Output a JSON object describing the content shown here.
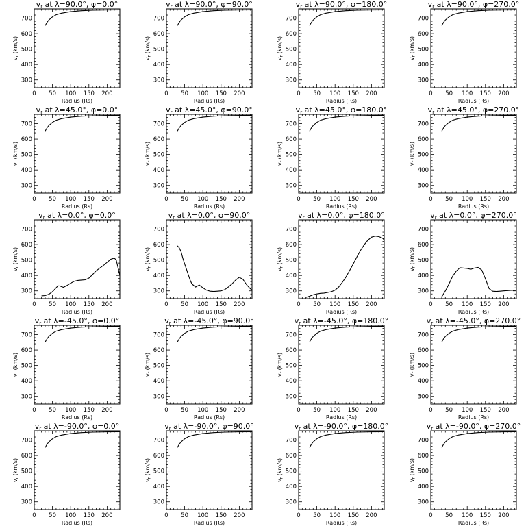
{
  "figure": {
    "xlabel": "Radius (Rs)",
    "ylabel": "vr (km/s)"
  },
  "chart_data": [
    {
      "type": "line",
      "title": "vr at λ=90.0°, φ=0.0°",
      "xlabel": "Radius (Rs)",
      "ylabel": "vr (km/s)",
      "xlim": [
        0,
        235
      ],
      "ylim": [
        250,
        760
      ],
      "xticks": [
        0,
        50,
        100,
        150,
        200
      ],
      "yticks": [
        300,
        400,
        500,
        600,
        700
      ],
      "x": [
        30,
        35,
        40,
        50,
        60,
        75,
        100,
        130,
        160,
        200,
        235
      ],
      "y": [
        652,
        672,
        688,
        708,
        722,
        732,
        742,
        748,
        751,
        753,
        754
      ]
    },
    {
      "type": "line",
      "title": "vr at λ=90.0°, φ=90.0°",
      "xlabel": "Radius (Rs)",
      "ylabel": "vr (km/s)",
      "xlim": [
        0,
        235
      ],
      "ylim": [
        250,
        760
      ],
      "xticks": [
        0,
        50,
        100,
        150,
        200
      ],
      "yticks": [
        300,
        400,
        500,
        600,
        700
      ],
      "x": [
        30,
        35,
        40,
        50,
        60,
        75,
        100,
        130,
        160,
        200,
        235
      ],
      "y": [
        652,
        672,
        688,
        708,
        722,
        732,
        742,
        748,
        751,
        753,
        754
      ]
    },
    {
      "type": "line",
      "title": "vr at λ=90.0°, φ=180.0°",
      "xlabel": "Radius (Rs)",
      "ylabel": "vr (km/s)",
      "xlim": [
        0,
        235
      ],
      "ylim": [
        250,
        760
      ],
      "xticks": [
        0,
        50,
        100,
        150,
        200
      ],
      "yticks": [
        300,
        400,
        500,
        600,
        700
      ],
      "x": [
        30,
        35,
        40,
        50,
        60,
        75,
        100,
        130,
        160,
        200,
        235
      ],
      "y": [
        652,
        672,
        688,
        708,
        722,
        732,
        742,
        748,
        751,
        753,
        754
      ]
    },
    {
      "type": "line",
      "title": "vr at λ=90.0°, φ=270.0°",
      "xlabel": "Radius (Rs)",
      "ylabel": "vr (km/s)",
      "xlim": [
        0,
        235
      ],
      "ylim": [
        250,
        760
      ],
      "xticks": [
        0,
        50,
        100,
        150,
        200
      ],
      "yticks": [
        300,
        400,
        500,
        600,
        700
      ],
      "x": [
        30,
        35,
        40,
        50,
        60,
        75,
        100,
        130,
        160,
        200,
        235
      ],
      "y": [
        652,
        672,
        688,
        708,
        722,
        732,
        742,
        748,
        751,
        753,
        754
      ]
    },
    {
      "type": "line",
      "title": "vr at λ=45.0°, φ=0.0°",
      "xlabel": "Radius (Rs)",
      "ylabel": "vr (km/s)",
      "xlim": [
        0,
        235
      ],
      "ylim": [
        250,
        760
      ],
      "xticks": [
        0,
        50,
        100,
        150,
        200
      ],
      "yticks": [
        300,
        400,
        500,
        600,
        700
      ],
      "x": [
        30,
        35,
        40,
        50,
        60,
        75,
        100,
        130,
        160,
        200,
        235
      ],
      "y": [
        652,
        672,
        688,
        708,
        722,
        732,
        742,
        748,
        751,
        753,
        754
      ]
    },
    {
      "type": "line",
      "title": "vr at λ=45.0°, φ=90.0°",
      "xlabel": "Radius (Rs)",
      "ylabel": "vr (km/s)",
      "xlim": [
        0,
        235
      ],
      "ylim": [
        250,
        760
      ],
      "xticks": [
        0,
        50,
        100,
        150,
        200
      ],
      "yticks": [
        300,
        400,
        500,
        600,
        700
      ],
      "x": [
        30,
        35,
        40,
        50,
        60,
        75,
        100,
        130,
        160,
        200,
        235
      ],
      "y": [
        652,
        672,
        688,
        708,
        722,
        732,
        742,
        748,
        751,
        753,
        754
      ]
    },
    {
      "type": "line",
      "title": "vr at λ=45.0°, φ=180.0°",
      "xlabel": "Radius (Rs)",
      "ylabel": "vr (km/s)",
      "xlim": [
        0,
        235
      ],
      "ylim": [
        250,
        760
      ],
      "xticks": [
        0,
        50,
        100,
        150,
        200
      ],
      "yticks": [
        300,
        400,
        500,
        600,
        700
      ],
      "x": [
        30,
        35,
        40,
        50,
        60,
        75,
        100,
        130,
        160,
        200,
        235
      ],
      "y": [
        652,
        672,
        688,
        708,
        722,
        732,
        742,
        748,
        751,
        753,
        754
      ]
    },
    {
      "type": "line",
      "title": "vr at λ=45.0°, φ=270.0°",
      "xlabel": "Radius (Rs)",
      "ylabel": "vr (km/s)",
      "xlim": [
        0,
        235
      ],
      "ylim": [
        250,
        760
      ],
      "xticks": [
        0,
        50,
        100,
        150,
        200
      ],
      "yticks": [
        300,
        400,
        500,
        600,
        700
      ],
      "x": [
        30,
        35,
        40,
        50,
        60,
        75,
        100,
        130,
        160,
        200,
        235
      ],
      "y": [
        652,
        672,
        688,
        708,
        722,
        732,
        742,
        748,
        751,
        753,
        754
      ]
    },
    {
      "type": "line",
      "title": "vr at λ=0.0°, φ=0.0°",
      "xlabel": "Radius (Rs)",
      "ylabel": "vr (km/s)",
      "xlim": [
        0,
        235
      ],
      "ylim": [
        250,
        760
      ],
      "xticks": [
        0,
        50,
        100,
        150,
        200
      ],
      "yticks": [
        300,
        400,
        500,
        600,
        700
      ],
      "x": [
        20,
        30,
        40,
        50,
        60,
        65,
        70,
        80,
        90,
        100,
        110,
        120,
        130,
        140,
        150,
        160,
        170,
        180,
        190,
        200,
        210,
        220,
        225,
        235
      ],
      "y": [
        268,
        270,
        278,
        295,
        320,
        333,
        332,
        323,
        335,
        350,
        362,
        368,
        370,
        372,
        383,
        405,
        430,
        448,
        465,
        485,
        505,
        512,
        500,
        400
      ]
    },
    {
      "type": "line",
      "title": "vr at λ=0.0°, φ=90.0°",
      "xlabel": "Radius (Rs)",
      "ylabel": "vr (km/s)",
      "xlim": [
        0,
        235
      ],
      "ylim": [
        250,
        760
      ],
      "xticks": [
        0,
        50,
        100,
        150,
        200
      ],
      "yticks": [
        300,
        400,
        500,
        600,
        700
      ],
      "x": [
        30,
        35,
        40,
        45,
        50,
        55,
        60,
        65,
        70,
        80,
        90,
        100,
        110,
        120,
        130,
        140,
        150,
        160,
        170,
        180,
        190,
        200,
        210,
        220,
        230,
        235
      ],
      "y": [
        592,
        580,
        555,
        512,
        475,
        440,
        405,
        370,
        345,
        325,
        338,
        320,
        305,
        298,
        296,
        298,
        300,
        308,
        325,
        345,
        370,
        388,
        375,
        340,
        315,
        305
      ]
    },
    {
      "type": "line",
      "title": "vr at λ=0.0°, φ=180.0°",
      "xlabel": "Radius (Rs)",
      "ylabel": "vr (km/s)",
      "xlim": [
        0,
        235
      ],
      "ylim": [
        250,
        760
      ],
      "xticks": [
        0,
        50,
        100,
        150,
        200
      ],
      "yticks": [
        300,
        400,
        500,
        600,
        700
      ],
      "x": [
        20,
        30,
        40,
        50,
        60,
        70,
        80,
        90,
        100,
        110,
        120,
        130,
        140,
        150,
        160,
        170,
        180,
        190,
        200,
        210,
        220,
        230,
        235
      ],
      "y": [
        258,
        266,
        275,
        280,
        284,
        286,
        290,
        295,
        305,
        325,
        355,
        390,
        432,
        475,
        520,
        562,
        598,
        628,
        648,
        655,
        652,
        642,
        630
      ]
    },
    {
      "type": "line",
      "title": "vr at λ=0.0°, φ=270.0°",
      "xlabel": "Radius (Rs)",
      "ylabel": "vr (km/s)",
      "xlim": [
        0,
        235
      ],
      "ylim": [
        250,
        760
      ],
      "xticks": [
        0,
        50,
        100,
        150,
        200
      ],
      "yticks": [
        300,
        400,
        500,
        600,
        700
      ],
      "x": [
        30,
        40,
        50,
        60,
        70,
        80,
        90,
        100,
        110,
        120,
        130,
        140,
        150,
        160,
        170,
        180,
        190,
        200,
        210,
        220,
        230,
        235
      ],
      "y": [
        262,
        300,
        345,
        395,
        428,
        450,
        448,
        445,
        440,
        448,
        452,
        435,
        378,
        315,
        298,
        296,
        298,
        300,
        302,
        303,
        304,
        305
      ]
    },
    {
      "type": "line",
      "title": "vr at λ=-45.0°, φ=0.0°",
      "xlabel": "Radius (Rs)",
      "ylabel": "vr (km/s)",
      "xlim": [
        0,
        235
      ],
      "ylim": [
        250,
        760
      ],
      "xticks": [
        0,
        50,
        100,
        150,
        200
      ],
      "yticks": [
        300,
        400,
        500,
        600,
        700
      ],
      "x": [
        30,
        35,
        40,
        50,
        60,
        75,
        100,
        130,
        160,
        200,
        235
      ],
      "y": [
        652,
        672,
        688,
        708,
        722,
        732,
        742,
        748,
        751,
        753,
        754
      ]
    },
    {
      "type": "line",
      "title": "vr at λ=-45.0°, φ=90.0°",
      "xlabel": "Radius (Rs)",
      "ylabel": "vr (km/s)",
      "xlim": [
        0,
        235
      ],
      "ylim": [
        250,
        760
      ],
      "xticks": [
        0,
        50,
        100,
        150,
        200
      ],
      "yticks": [
        300,
        400,
        500,
        600,
        700
      ],
      "x": [
        30,
        35,
        40,
        50,
        60,
        75,
        100,
        130,
        160,
        200,
        235
      ],
      "y": [
        652,
        672,
        688,
        708,
        722,
        732,
        742,
        748,
        751,
        753,
        754
      ]
    },
    {
      "type": "line",
      "title": "vr at λ=-45.0°, φ=180.0°",
      "xlabel": "Radius (Rs)",
      "ylabel": "vr (km/s)",
      "xlim": [
        0,
        235
      ],
      "ylim": [
        250,
        760
      ],
      "xticks": [
        0,
        50,
        100,
        150,
        200
      ],
      "yticks": [
        300,
        400,
        500,
        600,
        700
      ],
      "x": [
        30,
        35,
        40,
        50,
        60,
        75,
        100,
        130,
        160,
        200,
        235
      ],
      "y": [
        652,
        672,
        688,
        708,
        722,
        732,
        742,
        748,
        751,
        753,
        754
      ]
    },
    {
      "type": "line",
      "title": "vr at λ=-45.0°, φ=270.0°",
      "xlabel": "Radius (Rs)",
      "ylabel": "vr (km/s)",
      "xlim": [
        0,
        235
      ],
      "ylim": [
        250,
        760
      ],
      "xticks": [
        0,
        50,
        100,
        150,
        200
      ],
      "yticks": [
        300,
        400,
        500,
        600,
        700
      ],
      "x": [
        30,
        35,
        40,
        50,
        60,
        75,
        100,
        130,
        160,
        200,
        235
      ],
      "y": [
        652,
        672,
        688,
        708,
        722,
        732,
        742,
        748,
        751,
        753,
        754
      ]
    },
    {
      "type": "line",
      "title": "vr at λ=-90.0°, φ=0.0°",
      "xlabel": "Radius (Rs)",
      "ylabel": "vr (km/s)",
      "xlim": [
        0,
        235
      ],
      "ylim": [
        250,
        760
      ],
      "xticks": [
        0,
        50,
        100,
        150,
        200
      ],
      "yticks": [
        300,
        400,
        500,
        600,
        700
      ],
      "x": [
        30,
        35,
        40,
        50,
        60,
        75,
        100,
        130,
        160,
        200,
        235
      ],
      "y": [
        652,
        672,
        688,
        708,
        722,
        732,
        742,
        748,
        751,
        753,
        754
      ]
    },
    {
      "type": "line",
      "title": "vr at λ=-90.0°, φ=90.0°",
      "xlabel": "Radius (Rs)",
      "ylabel": "vr (km/s)",
      "xlim": [
        0,
        235
      ],
      "ylim": [
        250,
        760
      ],
      "xticks": [
        0,
        50,
        100,
        150,
        200
      ],
      "yticks": [
        300,
        400,
        500,
        600,
        700
      ],
      "x": [
        30,
        35,
        40,
        50,
        60,
        75,
        100,
        130,
        160,
        200,
        235
      ],
      "y": [
        652,
        672,
        688,
        708,
        722,
        732,
        742,
        748,
        751,
        753,
        754
      ]
    },
    {
      "type": "line",
      "title": "vr at λ=-90.0°, φ=180.0°",
      "xlabel": "Radius (Rs)",
      "ylabel": "vr (km/s)",
      "xlim": [
        0,
        235
      ],
      "ylim": [
        250,
        760
      ],
      "xticks": [
        0,
        50,
        100,
        150,
        200
      ],
      "yticks": [
        300,
        400,
        500,
        600,
        700
      ],
      "x": [
        30,
        35,
        40,
        50,
        60,
        75,
        100,
        130,
        160,
        200,
        235
      ],
      "y": [
        652,
        672,
        688,
        708,
        722,
        732,
        742,
        748,
        751,
        753,
        754
      ]
    },
    {
      "type": "line",
      "title": "vr at λ=-90.0°, φ=270.0°",
      "xlabel": "Radius (Rs)",
      "ylabel": "vr (km/s)",
      "xlim": [
        0,
        235
      ],
      "ylim": [
        250,
        760
      ],
      "xticks": [
        0,
        50,
        100,
        150,
        200
      ],
      "yticks": [
        300,
        400,
        500,
        600,
        700
      ],
      "x": [
        30,
        35,
        40,
        50,
        60,
        75,
        100,
        130,
        160,
        200,
        235
      ],
      "y": [
        652,
        672,
        688,
        708,
        722,
        732,
        742,
        748,
        751,
        753,
        754
      ]
    }
  ]
}
